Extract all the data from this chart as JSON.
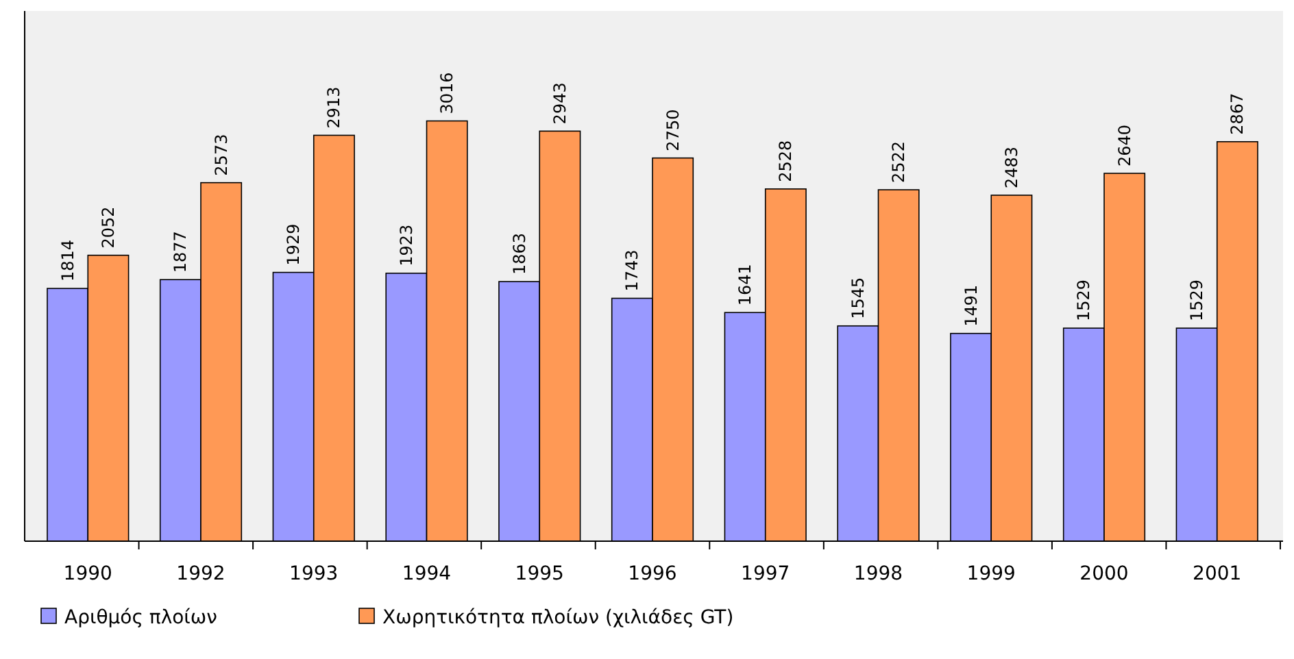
{
  "chart_data": {
    "type": "bar",
    "categories": [
      "1990",
      "1992",
      "1993",
      "1994",
      "1995",
      "1996",
      "1997",
      "1998",
      "1999",
      "2000",
      "2001"
    ],
    "series": [
      {
        "name": "Αριθμός πλοίων",
        "color": "#9999ff",
        "values": [
          1814,
          1877,
          1929,
          1923,
          1863,
          1743,
          1641,
          1545,
          1491,
          1529,
          1529
        ]
      },
      {
        "name": "Χωρητικότητα πλοίων (χιλιάδες GT)",
        "color": "#ff9955",
        "values": [
          2052,
          2573,
          2913,
          3016,
          2943,
          2750,
          2528,
          2522,
          2483,
          2640,
          2867
        ]
      }
    ],
    "data_labels": true,
    "legend": "bottom left",
    "tick_labels": "x"
  }
}
